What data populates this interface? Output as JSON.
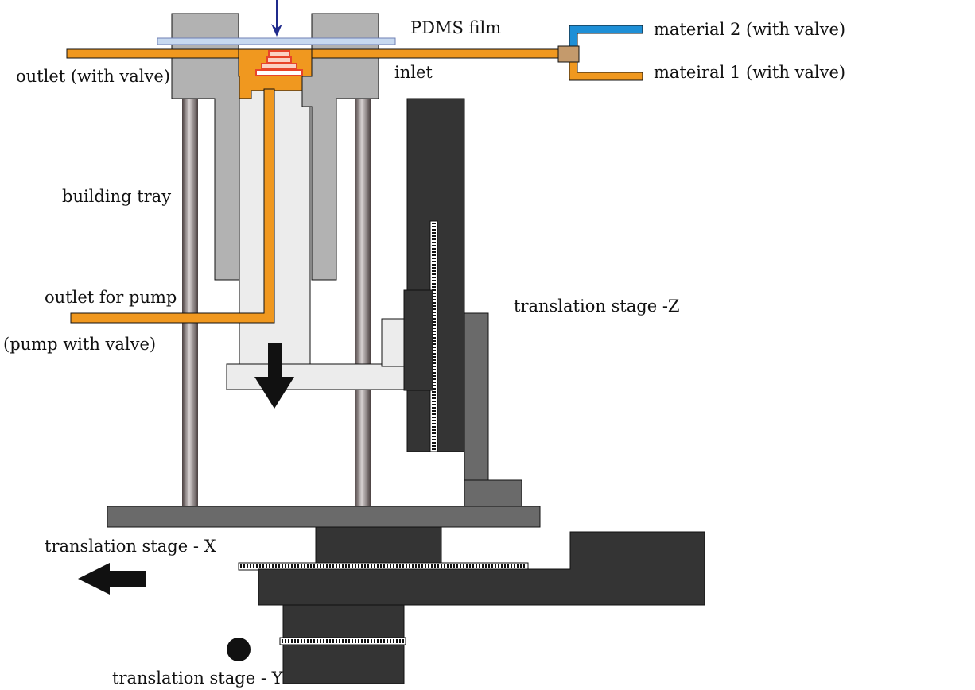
{
  "labels": {
    "pdms_film": "PDMS film",
    "material_2": "material 2 (with valve)",
    "material_1": "mateiral 1 (with valve)",
    "outlet_valve": "outlet (with valve)",
    "inlet": "inlet",
    "building_tray": "building tray",
    "outlet_pump": "outlet for pump",
    "pump_valve": "(pump with valve)",
    "stage_z": "translation stage -Z",
    "stage_x": "translation stage - X",
    "stage_y": "translation stage - Y"
  },
  "colors": {
    "tube_orange": "#f0981f",
    "tube_blue": "#1e8fd6",
    "connector": "#c49a6c",
    "frame_gray": "#b2b2b2",
    "tray_light": "#ececec",
    "stage_dark": "#343434",
    "stage_mid": "#6a6a6a",
    "film_blue": "#c7d9f0",
    "part_red": "#e8442a",
    "light_arrow": "#1f2a8c"
  }
}
